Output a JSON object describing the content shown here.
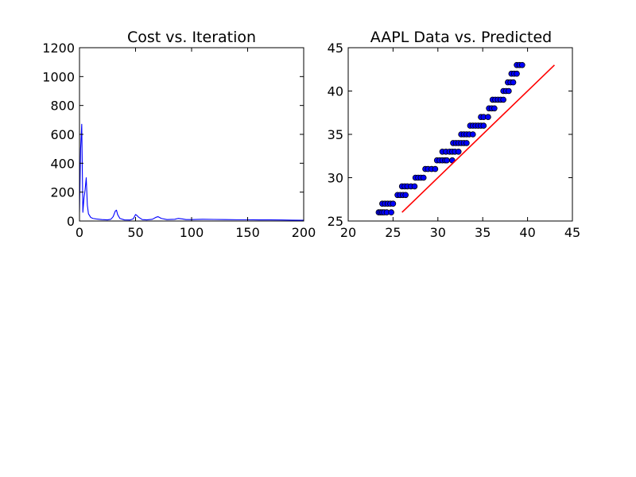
{
  "chart_data": [
    {
      "type": "line",
      "title": "Cost vs. Iteration",
      "xlabel": "",
      "ylabel": "",
      "xlim": [
        0,
        200
      ],
      "ylim": [
        0,
        1200
      ],
      "xticks": [
        0,
        50,
        100,
        150,
        200
      ],
      "yticks": [
        0,
        200,
        400,
        600,
        800,
        1000,
        1200
      ],
      "grid": false,
      "line_color": "#0000ff",
      "series": [
        {
          "x": [
            0,
            1,
            2,
            3,
            4,
            5,
            6,
            7,
            8,
            10,
            12,
            15,
            20,
            25,
            28,
            30,
            32,
            33,
            34,
            36,
            40,
            45,
            48,
            50,
            51,
            53,
            56,
            60,
            65,
            68,
            70,
            73,
            78,
            85,
            88,
            92,
            95,
            100,
            110,
            120,
            130,
            140,
            150,
            160,
            170,
            180,
            190,
            200
          ],
          "values": [
            60,
            500,
            670,
            60,
            160,
            215,
            300,
            110,
            50,
            25,
            18,
            14,
            10,
            8,
            12,
            30,
            70,
            75,
            45,
            18,
            8,
            7,
            15,
            45,
            40,
            25,
            10,
            8,
            12,
            25,
            30,
            18,
            10,
            12,
            18,
            14,
            10,
            10,
            12,
            11,
            10,
            9,
            9,
            8,
            8,
            7,
            6,
            5
          ]
        }
      ]
    },
    {
      "type": "scatter",
      "title": "AAPL Data vs. Predicted",
      "xlabel": "",
      "ylabel": "",
      "xlim": [
        20,
        45
      ],
      "ylim": [
        25,
        45
      ],
      "xticks": [
        20,
        25,
        30,
        35,
        40,
        45
      ],
      "yticks": [
        25,
        30,
        35,
        40,
        45
      ],
      "grid": false,
      "marker_color": "#0000ff",
      "line_color": "#ff0000",
      "series": [
        {
          "kind": "scatter",
          "points": [
            [
              23.4,
              26
            ],
            [
              23.6,
              26
            ],
            [
              23.8,
              26
            ],
            [
              24.0,
              26
            ],
            [
              24.3,
              26
            ],
            [
              24.8,
              26
            ],
            [
              23.8,
              27
            ],
            [
              24.1,
              27
            ],
            [
              24.4,
              27
            ],
            [
              24.7,
              27
            ],
            [
              25.0,
              27
            ],
            [
              25.5,
              28
            ],
            [
              25.8,
              28
            ],
            [
              26.1,
              28
            ],
            [
              26.4,
              28
            ],
            [
              26.0,
              29
            ],
            [
              26.3,
              29
            ],
            [
              26.6,
              29
            ],
            [
              27.0,
              29
            ],
            [
              27.4,
              29
            ],
            [
              27.5,
              30
            ],
            [
              27.8,
              30
            ],
            [
              28.1,
              30
            ],
            [
              28.4,
              30
            ],
            [
              28.6,
              31
            ],
            [
              28.9,
              31
            ],
            [
              29.3,
              31
            ],
            [
              29.7,
              31
            ],
            [
              29.9,
              32
            ],
            [
              30.2,
              32
            ],
            [
              30.5,
              32
            ],
            [
              30.8,
              32
            ],
            [
              31.0,
              32
            ],
            [
              31.6,
              32
            ],
            [
              30.5,
              33
            ],
            [
              30.9,
              33
            ],
            [
              31.3,
              33
            ],
            [
              31.6,
              33
            ],
            [
              31.9,
              33
            ],
            [
              32.3,
              33
            ],
            [
              31.7,
              34
            ],
            [
              32.0,
              34
            ],
            [
              32.3,
              34
            ],
            [
              32.6,
              34
            ],
            [
              32.9,
              34
            ],
            [
              33.2,
              34
            ],
            [
              32.6,
              35
            ],
            [
              32.9,
              35
            ],
            [
              33.2,
              35
            ],
            [
              33.5,
              35
            ],
            [
              33.9,
              35
            ],
            [
              33.6,
              36
            ],
            [
              33.9,
              36
            ],
            [
              34.2,
              36
            ],
            [
              34.5,
              36
            ],
            [
              34.8,
              36
            ],
            [
              35.1,
              36
            ],
            [
              34.8,
              37
            ],
            [
              35.1,
              37
            ],
            [
              35.6,
              37
            ],
            [
              35.7,
              38
            ],
            [
              36.0,
              38
            ],
            [
              36.3,
              38
            ],
            [
              36.1,
              39
            ],
            [
              36.4,
              39
            ],
            [
              36.7,
              39
            ],
            [
              37.0,
              39
            ],
            [
              37.3,
              39
            ],
            [
              37.3,
              40
            ],
            [
              37.6,
              40
            ],
            [
              37.9,
              40
            ],
            [
              37.8,
              41
            ],
            [
              38.1,
              41
            ],
            [
              38.4,
              41
            ],
            [
              38.2,
              42
            ],
            [
              38.5,
              42
            ],
            [
              38.8,
              42
            ],
            [
              38.8,
              43
            ],
            [
              39.1,
              43
            ],
            [
              39.4,
              43
            ]
          ]
        },
        {
          "kind": "line",
          "x": [
            26,
            43
          ],
          "values": [
            26,
            43
          ]
        }
      ]
    }
  ]
}
